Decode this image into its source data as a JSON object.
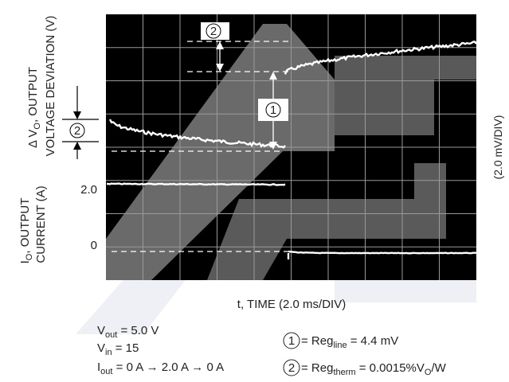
{
  "y_axis_top": {
    "line1": [
      "Δ V",
      "O",
      ", OUTPUT"
    ],
    "line2": "VOLTAGE DEVIATION (V)"
  },
  "y_axis_bottom": {
    "line1": [
      "I",
      "O",
      ", OUTPUT"
    ],
    "line2": "CURRENT (A)"
  },
  "y_scale_right": "(2.0 mV/DIV)",
  "current_ticks": [
    "2.0",
    "0"
  ],
  "x_axis_label": "t, TIME (2.0 ms/DIV)",
  "callouts": [
    "2",
    "1",
    "2"
  ],
  "conditions": [
    [
      "V",
      "out",
      " = 5.0 V"
    ],
    [
      "V",
      "in",
      " = 15"
    ],
    [
      "I",
      "out",
      " = 0 A → 2.0 A → 0 A"
    ]
  ],
  "legend": [
    {
      "marker": "1",
      "parts": [
        " = Reg",
        "line",
        " = 4.4 mV"
      ]
    },
    {
      "marker": "2",
      "parts": [
        " = Reg",
        "therm",
        " = 0.0015%V",
        "O",
        "/W"
      ]
    }
  ]
}
